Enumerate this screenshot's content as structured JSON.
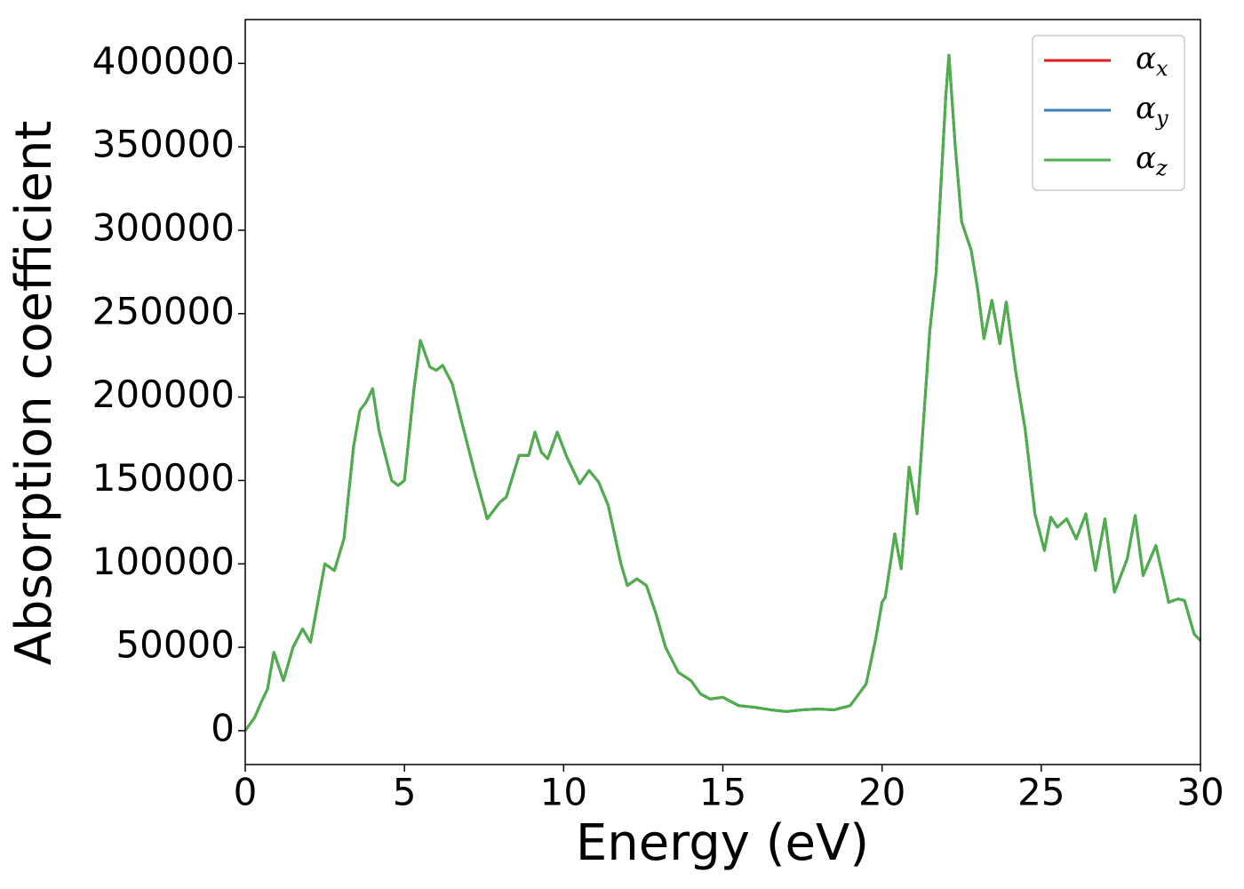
{
  "chart_data": {
    "type": "line",
    "xlabel": "Energy (eV)",
    "ylabel": "Absorption coefficient",
    "x": [
      0,
      0.3,
      0.5,
      0.7,
      0.9,
      1.2,
      1.5,
      1.8,
      2.05,
      2.5,
      2.8,
      3.1,
      3.4,
      3.6,
      3.8,
      4.0,
      4.2,
      4.6,
      4.8,
      5.0,
      5.3,
      5.5,
      5.8,
      6.0,
      6.2,
      6.5,
      6.8,
      7.2,
      7.6,
      8.0,
      8.2,
      8.6,
      8.9,
      9.1,
      9.3,
      9.5,
      9.8,
      10.1,
      10.5,
      10.8,
      11.1,
      11.4,
      11.8,
      12.0,
      12.3,
      12.6,
      12.9,
      13.2,
      13.6,
      14.0,
      14.3,
      14.6,
      15.0,
      15.5,
      16.0,
      16.5,
      17.0,
      17.5,
      18.0,
      18.5,
      19.0,
      19.5,
      19.8,
      20.0,
      20.1,
      20.3,
      20.4,
      20.6,
      20.85,
      21.1,
      21.5,
      21.7,
      22.0,
      22.1,
      22.3,
      22.5,
      22.8,
      23.0,
      23.2,
      23.45,
      23.7,
      23.9,
      24.2,
      24.5,
      24.8,
      25.1,
      25.3,
      25.5,
      25.8,
      26.1,
      26.4,
      26.7,
      27.0,
      27.3,
      27.7,
      27.95,
      28.2,
      28.6,
      28.9,
      29.0,
      29.3,
      29.5,
      29.8,
      30
    ],
    "series": [
      {
        "name": "αx",
        "color": "#e41a1c",
        "values": [
          0,
          8000,
          17000,
          25000,
          47000,
          30000,
          50000,
          61000,
          53000,
          100000,
          96000,
          115000,
          170000,
          192000,
          197000,
          205000,
          180000,
          150000,
          147000,
          150000,
          205000,
          234000,
          218000,
          216000,
          219000,
          208000,
          185000,
          155000,
          127000,
          137000,
          140000,
          165000,
          165000,
          179000,
          167000,
          163000,
          179000,
          164000,
          148000,
          156000,
          149000,
          135000,
          100000,
          87000,
          91000,
          87000,
          70000,
          50000,
          35000,
          30000,
          22000,
          19000,
          20000,
          15000,
          14000,
          12500,
          11500,
          12500,
          13000,
          12500,
          15000,
          28000,
          55000,
          77000,
          80000,
          105000,
          118000,
          97000,
          158000,
          130000,
          240000,
          275000,
          380000,
          405000,
          350000,
          305000,
          288000,
          265000,
          235000,
          258000,
          232000,
          257000,
          215000,
          180000,
          130000,
          108000,
          128000,
          122000,
          127000,
          115000,
          130000,
          96000,
          127000,
          83000,
          103000,
          129000,
          93000,
          111000,
          86000,
          77000,
          79000,
          78000,
          58000,
          54000
        ]
      },
      {
        "name": "αy",
        "color": "#377eb8",
        "values": [
          0,
          8000,
          17000,
          25000,
          47000,
          30000,
          50000,
          61000,
          53000,
          100000,
          96000,
          115000,
          170000,
          192000,
          197000,
          205000,
          180000,
          150000,
          147000,
          150000,
          205000,
          234000,
          218000,
          216000,
          219000,
          208000,
          185000,
          155000,
          127000,
          137000,
          140000,
          165000,
          165000,
          179000,
          167000,
          163000,
          179000,
          164000,
          148000,
          156000,
          149000,
          135000,
          100000,
          87000,
          91000,
          87000,
          70000,
          50000,
          35000,
          30000,
          22000,
          19000,
          20000,
          15000,
          14000,
          12500,
          11500,
          12500,
          13000,
          12500,
          15000,
          28000,
          55000,
          77000,
          80000,
          105000,
          118000,
          97000,
          158000,
          130000,
          240000,
          275000,
          380000,
          405000,
          350000,
          305000,
          288000,
          265000,
          235000,
          258000,
          232000,
          257000,
          215000,
          180000,
          130000,
          108000,
          128000,
          122000,
          127000,
          115000,
          130000,
          96000,
          127000,
          83000,
          103000,
          129000,
          93000,
          111000,
          86000,
          77000,
          79000,
          78000,
          58000,
          54000
        ]
      },
      {
        "name": "αz",
        "color": "#4daf4a",
        "values": [
          0,
          8000,
          17000,
          25000,
          47000,
          30000,
          50000,
          61000,
          53000,
          100000,
          96000,
          115000,
          170000,
          192000,
          197000,
          205000,
          180000,
          150000,
          147000,
          150000,
          205000,
          234000,
          218000,
          216000,
          219000,
          208000,
          185000,
          155000,
          127000,
          137000,
          140000,
          165000,
          165000,
          179000,
          167000,
          163000,
          179000,
          164000,
          148000,
          156000,
          149000,
          135000,
          100000,
          87000,
          91000,
          87000,
          70000,
          50000,
          35000,
          30000,
          22000,
          19000,
          20000,
          15000,
          14000,
          12500,
          11500,
          12500,
          13000,
          12500,
          15000,
          28000,
          55000,
          77000,
          80000,
          105000,
          118000,
          97000,
          158000,
          130000,
          240000,
          275000,
          380000,
          405000,
          350000,
          305000,
          288000,
          265000,
          235000,
          258000,
          232000,
          257000,
          215000,
          180000,
          130000,
          108000,
          128000,
          122000,
          127000,
          115000,
          130000,
          96000,
          127000,
          83000,
          103000,
          129000,
          93000,
          111000,
          86000,
          77000,
          79000,
          78000,
          58000,
          54000
        ]
      }
    ],
    "xlim": [
      0,
      30
    ],
    "xticks": [
      0,
      5,
      10,
      15,
      20,
      25,
      30
    ],
    "ylim": [
      -20300,
      426300
    ],
    "yticks": [
      0,
      50000,
      100000,
      150000,
      200000,
      250000,
      300000,
      350000,
      400000
    ],
    "legend": "upper right",
    "grid": false
  }
}
